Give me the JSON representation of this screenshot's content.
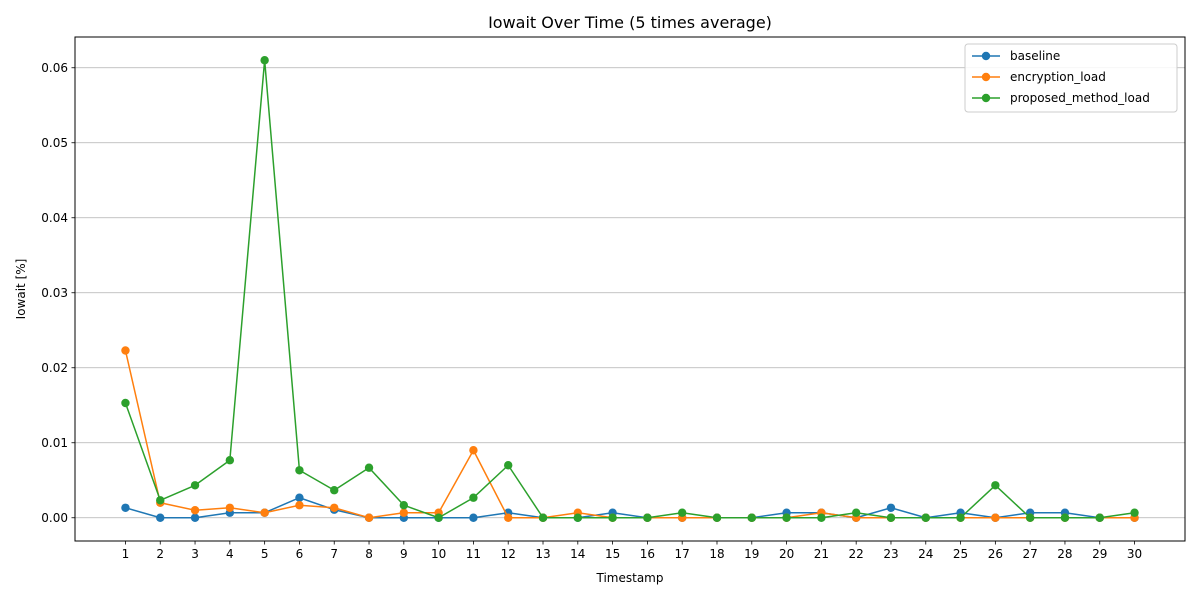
{
  "chart_data": {
    "type": "line",
    "title": "Iowait Over Time (5 times average)",
    "xlabel": "Timestamp",
    "ylabel": "Iowait [%]",
    "x": [
      1,
      2,
      3,
      4,
      5,
      6,
      7,
      8,
      9,
      10,
      11,
      12,
      13,
      14,
      15,
      16,
      17,
      18,
      19,
      20,
      21,
      22,
      23,
      24,
      25,
      26,
      27,
      28,
      29,
      30
    ],
    "ylim": [
      -0.0031,
      0.0641
    ],
    "yticks": [
      0.0,
      0.01,
      0.02,
      0.03,
      0.04,
      0.05,
      0.06
    ],
    "ytick_labels": [
      "0.00",
      "0.01",
      "0.02",
      "0.03",
      "0.04",
      "0.05",
      "0.06"
    ],
    "grid": "y-major",
    "legend_position": "top-right",
    "series": [
      {
        "name": "baseline",
        "color": "#1f77b4",
        "values": [
          0.00133,
          0,
          0,
          0.00067,
          0.00067,
          0.00267,
          0.00107,
          0,
          0,
          0,
          0,
          0.00067,
          0,
          0,
          0.00067,
          0,
          0,
          0,
          0,
          0.00067,
          0.00067,
          0,
          0.00133,
          0,
          0.00067,
          0,
          0.00067,
          0.00067,
          0,
          0
        ]
      },
      {
        "name": "encryption_load",
        "color": "#ff7f0e",
        "values": [
          0.0223,
          0.002,
          0.001,
          0.00133,
          0.00067,
          0.00167,
          0.00133,
          0,
          0.00067,
          0.00067,
          0.009,
          0,
          0,
          0.00067,
          0,
          0,
          0,
          0,
          0,
          0,
          0.00067,
          0,
          0,
          0,
          0,
          0,
          0,
          0,
          0,
          0
        ]
      },
      {
        "name": "proposed_method_load",
        "color": "#2ca02c",
        "values": [
          0.0153,
          0.00233,
          0.00433,
          0.00767,
          0.061,
          0.00633,
          0.00367,
          0.00667,
          0.00167,
          0,
          0.00267,
          0.007,
          0,
          0,
          0,
          0,
          0.00067,
          0,
          0,
          0,
          0,
          0.00067,
          0,
          0,
          0,
          0.00433,
          0,
          0,
          0,
          0.00067
        ]
      }
    ]
  }
}
